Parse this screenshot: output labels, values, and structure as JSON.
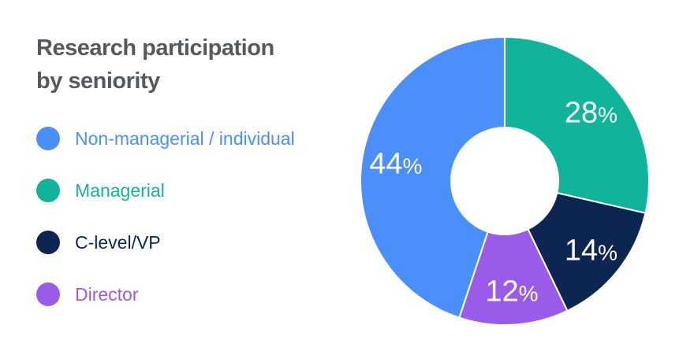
{
  "chart_data": {
    "type": "pie",
    "title_line1": "Research participation",
    "title_line2": "by seniority",
    "slices": [
      {
        "label": "Managerial",
        "value": 28,
        "display": "28",
        "color": "#11b49b"
      },
      {
        "label": "C-level/VP",
        "value": 14,
        "display": "14",
        "color": "#0c2551"
      },
      {
        "label": "Director",
        "value": 12,
        "display": "12",
        "color": "#9a5ce8"
      },
      {
        "label": "Non-managerial / individual",
        "value": 44,
        "display": "44",
        "color": "#4b8ffb"
      }
    ],
    "legend_order": [
      3,
      0,
      1,
      2
    ],
    "percent_sign": "%",
    "donut": true,
    "legend_position": "left"
  }
}
